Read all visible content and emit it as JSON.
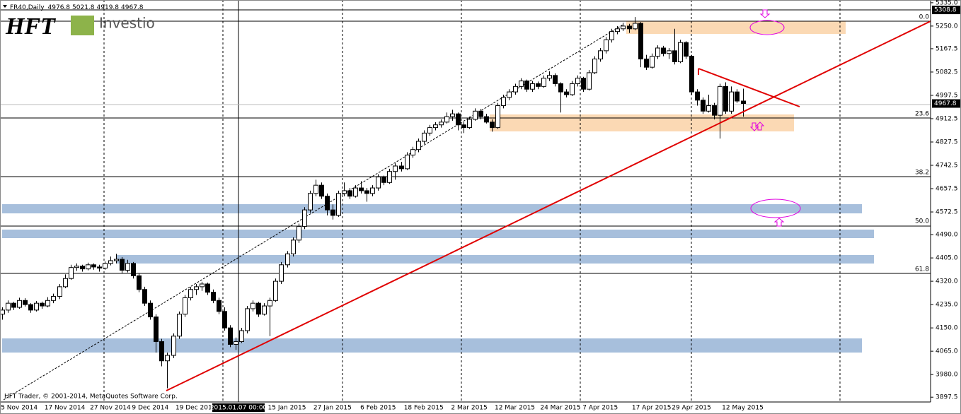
{
  "chart_data": {
    "type": "candlestick",
    "symbol": "FR40,Daily",
    "copyright": "HFT Trader, © 2001-2014, MetaQuotes Software Corp.",
    "logo": {
      "mark": "HFT",
      "name": "Investio"
    },
    "crosshair_label": "2015.01.07 00:00",
    "top_price": 5308.8,
    "fib_labels": [
      "0.0",
      "23.6",
      "38.2",
      "50.0",
      "61.8"
    ],
    "ylim": [
      3880,
      5345
    ],
    "yticks": [
      {
        "value": 5335,
        "label": "5335.0"
      },
      {
        "value": 5250,
        "label": "5250.0"
      },
      {
        "value": 5167.5,
        "label": "5167.5"
      },
      {
        "value": 5082.5,
        "label": "5082.5"
      },
      {
        "value": 4997.5,
        "label": "4997.5"
      },
      {
        "value": 4912.5,
        "label": "4912.5"
      },
      {
        "value": 4827.5,
        "label": "4827.5"
      },
      {
        "value": 4742.5,
        "label": "4742.5"
      },
      {
        "value": 4657.5,
        "label": "4657.5"
      },
      {
        "value": 4572.5,
        "label": "4572.5"
      },
      {
        "value": 4490,
        "label": "4490.0"
      },
      {
        "value": 4405,
        "label": "4405.0"
      },
      {
        "value": 4320,
        "label": "4320.0"
      },
      {
        "value": 4235,
        "label": "4235.0"
      },
      {
        "value": 4150,
        "label": "4150.0"
      },
      {
        "value": 4065,
        "label": "4065.0"
      },
      {
        "value": 3980,
        "label": "3980.0"
      },
      {
        "value": 3897.5,
        "label": "3897.5"
      }
    ],
    "categories": [
      null,
      null,
      null,
      "5 Nov 2014",
      null,
      null,
      null,
      null,
      null,
      null,
      null,
      "17 Nov 2014",
      null,
      null,
      null,
      null,
      null,
      null,
      null,
      "27 Nov 2014",
      null,
      null,
      null,
      null,
      null,
      null,
      "9 Dec 2014",
      null,
      null,
      null,
      null,
      null,
      null,
      null,
      "19 Dec 2014",
      null,
      null,
      null,
      null,
      null,
      null,
      null,
      null,
      null,
      null,
      null,
      null,
      null,
      null,
      null,
      "15 Jan 2015",
      null,
      null,
      null,
      null,
      null,
      null,
      null,
      "27 Jan 2015",
      null,
      null,
      null,
      null,
      null,
      null,
      null,
      "6 Feb 2015",
      null,
      null,
      null,
      null,
      null,
      null,
      null,
      "18 Feb 2015",
      null,
      null,
      null,
      null,
      null,
      null,
      null,
      "2 Mar 2015",
      null,
      null,
      null,
      null,
      null,
      null,
      null,
      "12 Mar 2015",
      null,
      null,
      null,
      null,
      null,
      null,
      null,
      "24 Mar 2015",
      null,
      null,
      null,
      null,
      null,
      null,
      "7 Apr 2015",
      null,
      null,
      null,
      null,
      null,
      null,
      null,
      null,
      "17 Apr 2015",
      null,
      null,
      null,
      null,
      null,
      null,
      "29 Apr 2015",
      null,
      null,
      null,
      null,
      null,
      null,
      null,
      null,
      "12 May 2015"
    ],
    "candles": [
      [
        4200,
        4225,
        4180,
        4215
      ],
      [
        4215,
        4250,
        4205,
        4240
      ],
      [
        4240,
        4245,
        4215,
        4225
      ],
      [
        4225,
        4260,
        4220,
        4250
      ],
      [
        4250,
        4258,
        4228,
        4235
      ],
      [
        4235,
        4240,
        4205,
        4215
      ],
      [
        4215,
        4248,
        4210,
        4240
      ],
      [
        4240,
        4246,
        4220,
        4230
      ],
      [
        4230,
        4262,
        4225,
        4250
      ],
      [
        4250,
        4275,
        4240,
        4265
      ],
      [
        4265,
        4310,
        4255,
        4300
      ],
      [
        4300,
        4345,
        4295,
        4330
      ],
      [
        4330,
        4380,
        4325,
        4370
      ],
      [
        4370,
        4385,
        4358,
        4375
      ],
      [
        4375,
        4380,
        4355,
        4365
      ],
      [
        4365,
        4388,
        4360,
        4380
      ],
      [
        4380,
        4385,
        4362,
        4372
      ],
      [
        4372,
        4380,
        4355,
        4368
      ],
      [
        4368,
        4392,
        4362,
        4385
      ],
      [
        4385,
        4410,
        4378,
        4395
      ],
      [
        4395,
        4420,
        4385,
        4400
      ],
      [
        4400,
        4408,
        4350,
        4360
      ],
      [
        4360,
        4398,
        4352,
        4385
      ],
      [
        4385,
        4390,
        4330,
        4340
      ],
      [
        4340,
        4350,
        4280,
        4290
      ],
      [
        4290,
        4300,
        4230,
        4240
      ],
      [
        4240,
        4250,
        4180,
        4190
      ],
      [
        4190,
        4200,
        4060,
        4100
      ],
      [
        4100,
        4110,
        4010,
        4030
      ],
      [
        4030,
        4060,
        3930,
        4050
      ],
      [
        4050,
        4130,
        4040,
        4120
      ],
      [
        4120,
        4210,
        4110,
        4200
      ],
      [
        4200,
        4270,
        4190,
        4260
      ],
      [
        4260,
        4300,
        4250,
        4290
      ],
      [
        4290,
        4310,
        4270,
        4300
      ],
      [
        4300,
        4318,
        4285,
        4310
      ],
      [
        4310,
        4315,
        4270,
        4280
      ],
      [
        4280,
        4290,
        4240,
        4250
      ],
      [
        4250,
        4260,
        4200,
        4210
      ],
      [
        4210,
        4225,
        4140,
        4150
      ],
      [
        4150,
        4160,
        4080,
        4090
      ],
      [
        4090,
        4115,
        4070,
        4100
      ],
      [
        4100,
        4150,
        4095,
        4140
      ],
      [
        4140,
        4230,
        4130,
        4220
      ],
      [
        4220,
        4250,
        4210,
        4240
      ],
      [
        4240,
        4245,
        4190,
        4200
      ],
      [
        4200,
        4240,
        4195,
        4230
      ],
      [
        4230,
        4260,
        4120,
        4250
      ],
      [
        4250,
        4330,
        4245,
        4320
      ],
      [
        4320,
        4390,
        4310,
        4380
      ],
      [
        4380,
        4430,
        4370,
        4420
      ],
      [
        4420,
        4480,
        4410,
        4470
      ],
      [
        4470,
        4530,
        4460,
        4520
      ],
      [
        4520,
        4590,
        4510,
        4580
      ],
      [
        4580,
        4650,
        4570,
        4640
      ],
      [
        4640,
        4690,
        4630,
        4670
      ],
      [
        4670,
        4680,
        4620,
        4630
      ],
      [
        4630,
        4640,
        4560,
        4580
      ],
      [
        4580,
        4600,
        4545,
        4560
      ],
      [
        4560,
        4650,
        4555,
        4640
      ],
      [
        4640,
        4680,
        4630,
        4650
      ],
      [
        4650,
        4660,
        4620,
        4630
      ],
      [
        4630,
        4670,
        4625,
        4660
      ],
      [
        4660,
        4685,
        4640,
        4650
      ],
      [
        4650,
        4660,
        4610,
        4640
      ],
      [
        4640,
        4670,
        4630,
        4660
      ],
      [
        4660,
        4710,
        4650,
        4700
      ],
      [
        4700,
        4705,
        4670,
        4680
      ],
      [
        4680,
        4730,
        4675,
        4720
      ],
      [
        4720,
        4750,
        4690,
        4740
      ],
      [
        4740,
        4755,
        4720,
        4730
      ],
      [
        4730,
        4790,
        4725,
        4780
      ],
      [
        4780,
        4810,
        4770,
        4800
      ],
      [
        4800,
        4840,
        4790,
        4830
      ],
      [
        4830,
        4870,
        4820,
        4860
      ],
      [
        4860,
        4890,
        4850,
        4880
      ],
      [
        4880,
        4900,
        4870,
        4890
      ],
      [
        4890,
        4910,
        4880,
        4900
      ],
      [
        4900,
        4935,
        4895,
        4920
      ],
      [
        4920,
        4945,
        4905,
        4930
      ],
      [
        4930,
        4935,
        4870,
        4890
      ],
      [
        4890,
        4900,
        4860,
        4880
      ],
      [
        4880,
        4920,
        4875,
        4910
      ],
      [
        4910,
        4950,
        4905,
        4940
      ],
      [
        4940,
        4948,
        4910,
        4920
      ],
      [
        4920,
        4930,
        4895,
        4900
      ],
      [
        4900,
        4910,
        4865,
        4880
      ],
      [
        4880,
        4970,
        4875,
        4960
      ],
      [
        4960,
        5000,
        4950,
        4990
      ],
      [
        4990,
        5020,
        4980,
        5010
      ],
      [
        5010,
        5040,
        5000,
        5030
      ],
      [
        5030,
        5060,
        5020,
        5050
      ],
      [
        5050,
        5055,
        5010,
        5020
      ],
      [
        5020,
        5050,
        5010,
        5040
      ],
      [
        5040,
        5048,
        5020,
        5030
      ],
      [
        5030,
        5070,
        5025,
        5060
      ],
      [
        5060,
        5085,
        5050,
        5070
      ],
      [
        5070,
        5078,
        5030,
        5040
      ],
      [
        5040,
        5045,
        4935,
        5010
      ],
      [
        5010,
        5020,
        4990,
        5000
      ],
      [
        5000,
        5050,
        4995,
        5040
      ],
      [
        5040,
        5070,
        5030,
        5060
      ],
      [
        5060,
        5065,
        5010,
        5020
      ],
      [
        5020,
        5090,
        5015,
        5080
      ],
      [
        5080,
        5140,
        5075,
        5130
      ],
      [
        5130,
        5170,
        5120,
        5160
      ],
      [
        5160,
        5210,
        5150,
        5200
      ],
      [
        5200,
        5240,
        5190,
        5230
      ],
      [
        5230,
        5250,
        5220,
        5240
      ],
      [
        5240,
        5262,
        5232,
        5250
      ],
      [
        5250,
        5258,
        5225,
        5240
      ],
      [
        5240,
        5283,
        5235,
        5260
      ],
      [
        5260,
        5265,
        5100,
        5130
      ],
      [
        5130,
        5145,
        5090,
        5100
      ],
      [
        5100,
        5150,
        5095,
        5140
      ],
      [
        5140,
        5180,
        5130,
        5170
      ],
      [
        5170,
        5178,
        5140,
        5150
      ],
      [
        5150,
        5170,
        5130,
        5160
      ],
      [
        5160,
        5240,
        5110,
        5120
      ],
      [
        5120,
        5200,
        5115,
        5190
      ],
      [
        5190,
        5195,
        5130,
        5140
      ],
      [
        5140,
        5145,
        5000,
        5010
      ],
      [
        5010,
        5020,
        4960,
        4980
      ],
      [
        4980,
        4990,
        4930,
        4940
      ],
      [
        4940,
        5000,
        4935,
        4960
      ],
      [
        4960,
        4970,
        4910,
        4925
      ],
      [
        4925,
        5040,
        4840,
        5030
      ],
      [
        5030,
        5045,
        4930,
        4940
      ],
      [
        4940,
        5030,
        4930,
        5010
      ],
      [
        5010,
        5020,
        4970,
        4976.8
      ],
      [
        4976.8,
        5021.8,
        4919.8,
        4967.8
      ]
    ]
  }
}
